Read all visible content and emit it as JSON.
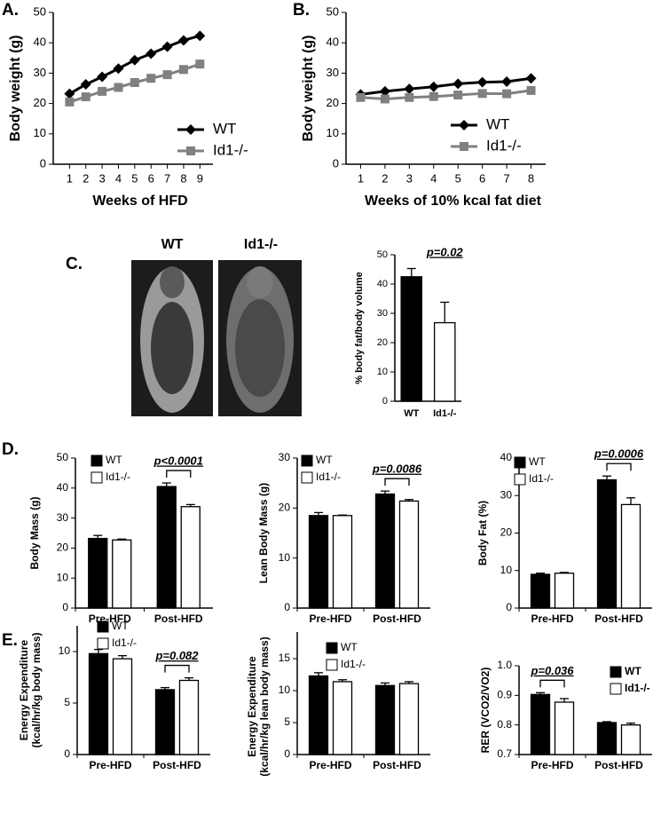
{
  "figure": {
    "panels": [
      "A.",
      "B.",
      "C.",
      "D.",
      "E."
    ]
  },
  "images": {
    "labels": [
      "WT",
      "Id1-/-"
    ]
  },
  "chart_data": [
    {
      "type": "line",
      "xlabel": "Weeks of HFD",
      "ylabel": "Body weight (g)",
      "x": [
        1,
        2,
        3,
        4,
        5,
        6,
        7,
        8,
        9
      ],
      "xlim": [
        0,
        9.8
      ],
      "xticks": [
        1,
        2,
        3,
        4,
        5,
        6,
        7,
        8,
        9
      ],
      "ylim": [
        0,
        50
      ],
      "yticks": [
        0,
        10,
        20,
        30,
        40,
        50
      ],
      "series": [
        {
          "name": "WT",
          "color": "#000000",
          "marker": "diamond",
          "values": [
            23.2,
            26.3,
            28.8,
            31.5,
            34.3,
            36.4,
            38.7,
            40.8,
            42.3
          ]
        },
        {
          "name": "Id1-/-",
          "color": "#808080",
          "marker": "square",
          "values": [
            20.5,
            22.2,
            24.0,
            25.3,
            26.9,
            28.3,
            29.5,
            31.2,
            33.0
          ]
        }
      ]
    },
    {
      "type": "line",
      "xlabel": "Weeks of 10% kcal fat diet",
      "ylabel": "Body weight (g)",
      "x": [
        1,
        2,
        3,
        4,
        5,
        6,
        7,
        8
      ],
      "xlim": [
        0.4,
        8.6
      ],
      "xticks": [
        1,
        2,
        3,
        4,
        5,
        6,
        7,
        8
      ],
      "ylim": [
        0,
        50
      ],
      "yticks": [
        0,
        10,
        20,
        30,
        40,
        50
      ],
      "series": [
        {
          "name": "WT",
          "color": "#000000",
          "marker": "diamond",
          "values": [
            23.0,
            24.0,
            24.8,
            25.5,
            26.5,
            27.0,
            27.2,
            28.3
          ]
        },
        {
          "name": "Id1-/-",
          "color": "#808080",
          "marker": "square",
          "values": [
            22.0,
            21.5,
            22.0,
            22.3,
            22.8,
            23.3,
            23.2,
            24.3
          ]
        }
      ]
    },
    {
      "type": "bar",
      "ylabel": "% body fat/body volume",
      "categories": [
        "WT",
        "Id1-/-"
      ],
      "values": [
        42.5,
        26.8
      ],
      "errors": [
        2.8,
        7.0
      ],
      "colors": [
        "#000000",
        "#ffffff"
      ],
      "ylim": [
        0,
        50
      ],
      "yticks": [
        0,
        10,
        20,
        30,
        40,
        50
      ],
      "annotation": "p=0.02"
    },
    {
      "type": "grouped_bar",
      "ylabel": "Body Mass (g)",
      "categories": [
        "Pre-HFD",
        "Post-HFD"
      ],
      "ylim": [
        0,
        50
      ],
      "yticks": [
        0,
        10,
        20,
        30,
        40,
        50
      ],
      "annotation": "p<0.0001",
      "series": [
        {
          "name": "WT",
          "color": "#000000",
          "values": [
            23.2,
            40.5
          ],
          "errors": [
            1.0,
            1.2
          ]
        },
        {
          "name": "Id1-/-",
          "color": "#ffffff",
          "values": [
            22.7,
            33.8
          ],
          "errors": [
            0.3,
            0.7
          ]
        }
      ]
    },
    {
      "type": "grouped_bar",
      "ylabel": "Lean Body Mass (g)",
      "categories": [
        "Pre-HFD",
        "Post-HFD"
      ],
      "ylim": [
        0,
        30
      ],
      "yticks": [
        0,
        10,
        20,
        30
      ],
      "annotation": "p=0.0086",
      "series": [
        {
          "name": "WT",
          "color": "#000000",
          "values": [
            18.5,
            22.8
          ],
          "errors": [
            0.6,
            0.6
          ]
        },
        {
          "name": "Id1-/-",
          "color": "#ffffff",
          "values": [
            18.5,
            21.4
          ],
          "errors": [
            0.1,
            0.3
          ]
        }
      ]
    },
    {
      "type": "grouped_bar",
      "ylabel": "Body Fat (%)",
      "categories": [
        "Pre-HFD",
        "Post-HFD"
      ],
      "ylim": [
        0,
        40
      ],
      "yticks": [
        0,
        10,
        20,
        30,
        40
      ],
      "annotation": "p=0.0006",
      "series": [
        {
          "name": "WT",
          "color": "#000000",
          "values": [
            9.0,
            34.2
          ],
          "errors": [
            0.3,
            1.0
          ]
        },
        {
          "name": "Id1-/-",
          "color": "#ffffff",
          "values": [
            9.3,
            27.6
          ],
          "errors": [
            0.2,
            1.8
          ]
        }
      ]
    },
    {
      "type": "grouped_bar",
      "ylabel": [
        "Energy Expenditure",
        "(kcal/hr/kg body mass)"
      ],
      "categories": [
        "Pre-HFD",
        "Post-HFD"
      ],
      "ylim": [
        0,
        12.5
      ],
      "yticks": [
        0,
        5,
        10
      ],
      "annotation": "p=0.082",
      "series": [
        {
          "name": "WT",
          "color": "#000000",
          "values": [
            9.8,
            6.3
          ],
          "errors": [
            0.4,
            0.2
          ]
        },
        {
          "name": "Id1-/-",
          "color": "#ffffff",
          "values": [
            9.3,
            7.2
          ],
          "errors": [
            0.3,
            0.25
          ]
        }
      ]
    },
    {
      "type": "grouped_bar",
      "ylabel": [
        "Energy Expenditure",
        "(kcal/hr/kg lean body mass)"
      ],
      "categories": [
        "Pre-HFD",
        "Post-HFD"
      ],
      "ylim": [
        0,
        15
      ],
      "yticks": [
        0,
        5,
        10,
        15
      ],
      "series": [
        {
          "name": "WT",
          "color": "#000000",
          "values": [
            12.3,
            10.8
          ],
          "errors": [
            0.5,
            0.4
          ]
        },
        {
          "name": "Id1-/-",
          "color": "#ffffff",
          "values": [
            11.4,
            11.1
          ],
          "errors": [
            0.3,
            0.3
          ]
        }
      ]
    },
    {
      "type": "grouped_bar",
      "ylabel": "RER (VCO2/VO2)",
      "categories": [
        "Pre-HFD",
        "Post-HFD"
      ],
      "ylim": [
        0.7,
        1.0
      ],
      "yticks": [
        0.7,
        0.8,
        0.9,
        {
          "value": 1.0,
          "label": "1.0"
        }
      ],
      "annotation": "p=0.036",
      "legend_bold": true,
      "series": [
        {
          "name": "WT",
          "color": "#000000",
          "values": [
            0.903,
            0.808
          ],
          "errors": [
            0.006,
            0.003
          ]
        },
        {
          "name": "Id1-/-",
          "color": "#ffffff",
          "values": [
            0.877,
            0.8
          ],
          "errors": [
            0.012,
            0.006
          ]
        }
      ]
    }
  ]
}
